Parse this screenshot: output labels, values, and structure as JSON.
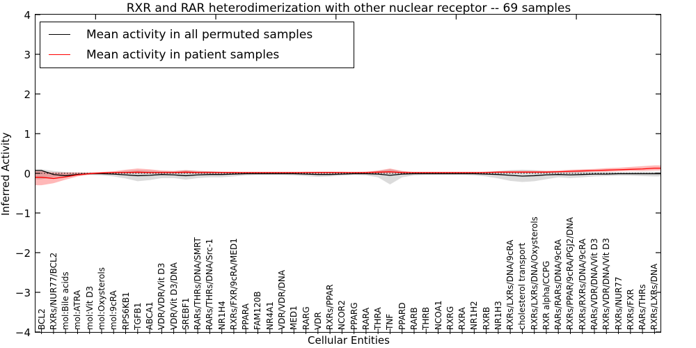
{
  "figure": {
    "title": "RXR and RAR heterodimerization with other nuclear receptor -- 69 samples",
    "xlabel": "Cellular Entities",
    "ylabel": "Inferred Activity"
  },
  "legend": {
    "items": [
      {
        "label": "Mean activity in all permuted samples",
        "color": "#000000"
      },
      {
        "label": "Mean activity in patient samples",
        "color": "#ff0000"
      }
    ]
  },
  "axes": {
    "y_ticks": [
      "4",
      "3",
      "2",
      "1",
      "0",
      "−1",
      "−2",
      "−3",
      "−4"
    ],
    "y_values": [
      4,
      3,
      2,
      1,
      0,
      -1,
      -2,
      -3,
      -4
    ]
  },
  "chart_data": {
    "type": "line",
    "title": "RXR and RAR heterodimerization with other nuclear receptor -- 69 samples",
    "xlabel": "Cellular Entities",
    "ylabel": "Inferred Activity",
    "ylim": [
      -4,
      4
    ],
    "grid": false,
    "legend_position": "upper left",
    "zero_reference_line": 0,
    "top_ticks": [
      5,
      15,
      25,
      35,
      45
    ],
    "categories": [
      "BCL2",
      "RXRs/NUR77/BCL2",
      "mol:Bile acids",
      "mol:ATRA",
      "mol:Vit D3",
      "mol:Oxysterols",
      "mol:9cRA",
      "RPS6KB1",
      "TGFB1",
      "ABCA1",
      "VDR/VDR/Vit D3",
      "VDR/Vit D3/DNA",
      "SREBF1",
      "RARs/THRs/DNA/SMRT",
      "RARs/THRs/DNA/Src-1",
      "NR1H4",
      "RXRs/FXR/9cRA/MED1",
      "PPARA",
      "FAM120B",
      "NR4A1",
      "VDR/VDR/DNA",
      "MED1",
      "RARG",
      "VDR",
      "RXRs/PPAR",
      "NCOR2",
      "PPARG",
      "RARA",
      "THRA",
      "TNF",
      "PPARD",
      "RARB",
      "THRB",
      "NCOA1",
      "RXRG",
      "RXRA",
      "NR1H2",
      "RXRB",
      "NR1H3",
      "RXRs/LXRs/DNA/9cRA",
      "cholesterol transport",
      "RXRs/LXRs/DNA/Oxysterols",
      "RXR alpha/CCPG",
      "RARs/RARs/DNA/9cRA",
      "RXRs/PPAR/9cRA/PGJ2/DNA",
      "RXRs/RXRs/DNA/9cRA",
      "RARs/VDR/DNA/Vit D3",
      "RXRs/VDR/DNA/Vit D3",
      "RXRs/NUR77",
      "RXRs/FXR",
      "RARs/THRs",
      "RXRs/LXRs/DNA"
    ],
    "series": [
      {
        "name": "Mean activity in all permuted samples",
        "color": "#000000",
        "values": [
          0.07,
          -0.03,
          -0.06,
          -0.03,
          -0.01,
          -0.01,
          -0.02,
          -0.04,
          -0.06,
          -0.05,
          -0.03,
          -0.04,
          -0.06,
          -0.04,
          -0.03,
          -0.03,
          -0.02,
          -0.01,
          -0.01,
          -0.01,
          -0.01,
          -0.01,
          -0.02,
          -0.03,
          -0.03,
          -0.02,
          -0.01,
          -0.01,
          -0.02,
          -0.05,
          -0.02,
          -0.01,
          -0.01,
          -0.01,
          -0.01,
          -0.01,
          -0.01,
          -0.02,
          -0.03,
          -0.05,
          -0.07,
          -0.06,
          -0.04,
          -0.03,
          -0.04,
          -0.03,
          -0.02,
          -0.02,
          -0.01,
          -0.01,
          -0.01,
          -0.01
        ]
      },
      {
        "name": "Mean activity in patient samples",
        "color": "#ff0000",
        "values": [
          -0.1,
          -0.13,
          -0.09,
          -0.04,
          -0.01,
          0.01,
          0.02,
          0.02,
          0.03,
          0.02,
          0.02,
          0.02,
          0.03,
          0.02,
          0.02,
          0.02,
          0.02,
          0.02,
          0.02,
          0.02,
          0.02,
          0.02,
          0.02,
          0.02,
          0.02,
          0.02,
          0.02,
          0.02,
          0.03,
          0.04,
          0.02,
          0.02,
          0.02,
          0.02,
          0.02,
          0.02,
          0.02,
          0.02,
          0.03,
          0.03,
          0.03,
          0.03,
          0.03,
          0.04,
          0.05,
          0.06,
          0.07,
          0.08,
          0.09,
          0.1,
          0.11,
          0.13
        ]
      }
    ],
    "bands": [
      {
        "name": "permuted-samples-range",
        "color": "#000000",
        "alpha": 0.14,
        "upper": [
          0.1,
          0.06,
          0.03,
          0.02,
          0.02,
          0.02,
          0.03,
          0.06,
          0.08,
          0.07,
          0.05,
          0.05,
          0.08,
          0.06,
          0.05,
          0.04,
          0.03,
          0.02,
          0.02,
          0.02,
          0.02,
          0.02,
          0.03,
          0.04,
          0.04,
          0.03,
          0.02,
          0.03,
          0.06,
          0.1,
          0.05,
          0.02,
          0.02,
          0.02,
          0.02,
          0.02,
          0.02,
          0.04,
          0.06,
          0.08,
          0.09,
          0.08,
          0.06,
          0.05,
          0.06,
          0.05,
          0.04,
          0.04,
          0.03,
          0.03,
          0.04,
          0.04
        ],
        "lower": [
          -0.15,
          -0.1,
          -0.08,
          -0.05,
          -0.04,
          -0.05,
          -0.08,
          -0.13,
          -0.2,
          -0.17,
          -0.12,
          -0.12,
          -0.16,
          -0.12,
          -0.1,
          -0.1,
          -0.08,
          -0.05,
          -0.04,
          -0.04,
          -0.04,
          -0.05,
          -0.07,
          -0.09,
          -0.08,
          -0.06,
          -0.04,
          -0.05,
          -0.1,
          -0.28,
          -0.1,
          -0.05,
          -0.04,
          -0.04,
          -0.04,
          -0.04,
          -0.05,
          -0.08,
          -0.13,
          -0.19,
          -0.22,
          -0.2,
          -0.15,
          -0.1,
          -0.12,
          -0.1,
          -0.08,
          -0.07,
          -0.06,
          -0.06,
          -0.07,
          -0.08
        ]
      },
      {
        "name": "patient-samples-range",
        "color": "#ff0000",
        "alpha": 0.28,
        "upper": [
          0.05,
          0.02,
          0.02,
          0.02,
          0.02,
          0.03,
          0.05,
          0.09,
          0.12,
          0.1,
          0.07,
          0.06,
          0.08,
          0.06,
          0.05,
          0.04,
          0.04,
          0.03,
          0.03,
          0.03,
          0.03,
          0.03,
          0.04,
          0.04,
          0.04,
          0.04,
          0.03,
          0.04,
          0.07,
          0.12,
          0.06,
          0.03,
          0.03,
          0.03,
          0.03,
          0.03,
          0.03,
          0.04,
          0.05,
          0.06,
          0.06,
          0.06,
          0.06,
          0.07,
          0.09,
          0.1,
          0.11,
          0.13,
          0.14,
          0.16,
          0.18,
          0.2
        ],
        "lower": [
          -0.3,
          -0.25,
          -0.16,
          -0.08,
          -0.03,
          -0.01,
          0.0,
          0.0,
          0.0,
          0.0,
          0.0,
          0.0,
          0.0,
          0.0,
          0.0,
          0.0,
          0.0,
          0.01,
          0.01,
          0.01,
          0.01,
          0.01,
          0.01,
          0.0,
          0.0,
          0.01,
          0.01,
          0.01,
          0.0,
          0.0,
          0.0,
          0.01,
          0.01,
          0.01,
          0.01,
          0.01,
          0.01,
          0.01,
          0.01,
          0.01,
          0.01,
          0.01,
          0.01,
          0.02,
          0.02,
          0.03,
          0.04,
          0.04,
          0.05,
          0.06,
          0.06,
          0.07
        ]
      }
    ]
  }
}
